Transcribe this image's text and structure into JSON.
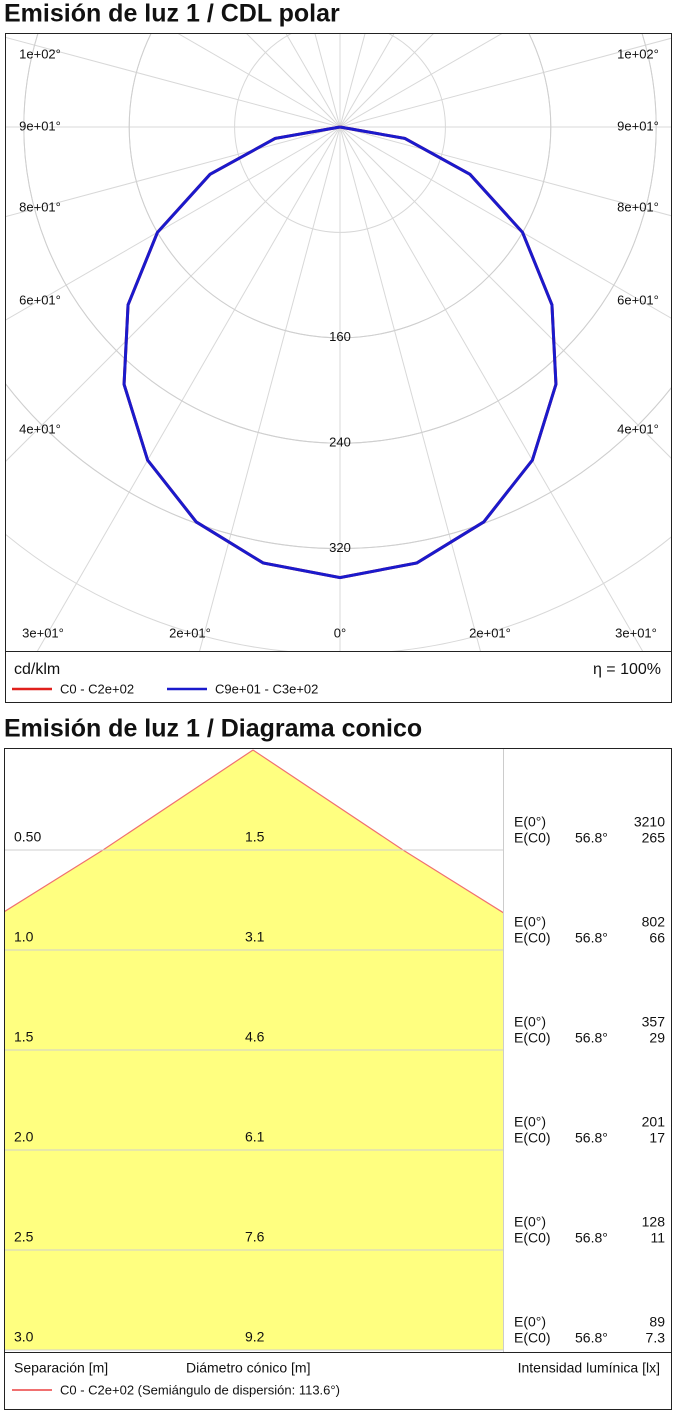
{
  "chart_data": [
    {
      "type": "polar",
      "title": "Emisión de luz 1 / CDL polar",
      "x": [
        -90,
        -80,
        -70,
        -60,
        -50,
        -40,
        -30,
        -20,
        -10,
        0,
        10,
        20,
        30,
        40,
        50,
        60,
        70,
        80,
        90
      ],
      "series": [
        {
          "name": "C0 - C2e+02",
          "color": "#e0201c",
          "values": [
            0,
            50,
            105,
            160,
            210,
            255,
            292,
            319,
            336,
            342,
            336,
            319,
            292,
            255,
            210,
            160,
            105,
            50,
            0
          ]
        },
        {
          "name": "C9e+01 - C3e+02",
          "color": "#1a1acc",
          "values": [
            0,
            50,
            105,
            160,
            210,
            255,
            292,
            319,
            336,
            342,
            336,
            319,
            292,
            255,
            210,
            160,
            105,
            50,
            0
          ]
        }
      ],
      "rlim": [
        0,
        400
      ],
      "rticks": [
        160,
        240,
        320
      ],
      "angle_labels": [
        "1e+02°",
        "9e+01°",
        "8e+01°",
        "6e+01°",
        "4e+01°",
        "3e+01°",
        "2e+01°",
        "0°",
        "2e+01°",
        "3e+01°",
        "4e+01°",
        "6e+01°",
        "8e+01°",
        "9e+01°",
        "1e+02°"
      ],
      "unit_label": "cd/klm",
      "efficiency": "η = 100%"
    },
    {
      "type": "cone",
      "title": "Emisión de luz 1 / Diagrama conico",
      "rows": [
        {
          "distance": {
            "value": 0.5,
            "label": "0.50"
          },
          "diameter": 1.5,
          "e0_label": "E(0°)",
          "e0": 3210,
          "ec0_label": "E(C0)",
          "angle": "56.8°",
          "ec0": 265
        },
        {
          "distance": {
            "value": 1.0,
            "label": "1.0"
          },
          "diameter": 3.1,
          "e0_label": "E(0°)",
          "e0": 802,
          "ec0_label": "E(C0)",
          "angle": "56.8°",
          "ec0": 66
        },
        {
          "distance": {
            "value": 1.5,
            "label": "1.5"
          },
          "diameter": 4.6,
          "e0_label": "E(0°)",
          "e0": 357,
          "ec0_label": "E(C0)",
          "angle": "56.8°",
          "ec0": 29
        },
        {
          "distance": {
            "value": 2.0,
            "label": "2.0"
          },
          "diameter": 6.1,
          "e0_label": "E(0°)",
          "e0": 201,
          "ec0_label": "E(C0)",
          "angle": "56.8°",
          "ec0": 17
        },
        {
          "distance": {
            "value": 2.5,
            "label": "2.5"
          },
          "diameter": 7.6,
          "e0_label": "E(0°)",
          "e0": 128,
          "ec0_label": "E(C0)",
          "angle": "56.8°",
          "ec0": 11
        },
        {
          "distance": {
            "value": 3.0,
            "label": "3.0"
          },
          "diameter": 9.2,
          "e0_label": "E(0°)",
          "e0": 89,
          "ec0_label": "E(C0)",
          "angle": "56.8°",
          "ec0": 7.3
        }
      ],
      "distance_label": "Separación [m]",
      "diameter_label": "Diámetro cónico [m]",
      "illuminance_label": "Intensidad lumínica [lx]",
      "legend": {
        "name": "C0 - C2e+02 (Semiángulo de dispersión: 113.6°)",
        "color": "#f07070"
      }
    }
  ]
}
